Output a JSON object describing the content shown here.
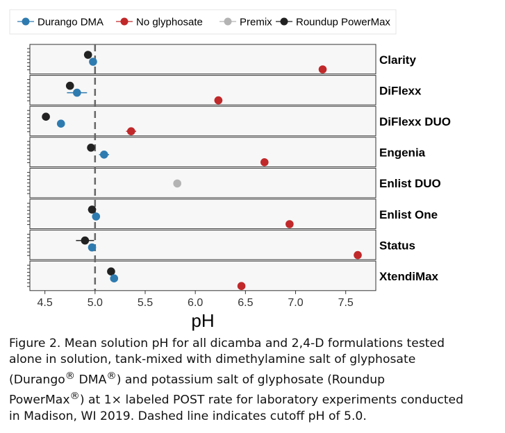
{
  "chart_data": {
    "type": "scatter",
    "xlabel": "pH",
    "ylabel": "",
    "xlim": [
      4.35,
      7.8
    ],
    "x_ticks": [
      4.5,
      5.0,
      5.5,
      6.0,
      6.5,
      7.0,
      7.5
    ],
    "x_tick_labels": [
      "4.5",
      "5.0",
      "5.5",
      "6.0",
      "6.5",
      "7.0",
      "7.5"
    ],
    "legend_position": "top",
    "reference_line": {
      "x": 5.0,
      "style": "dashed"
    },
    "grid": false,
    "series": [
      {
        "name": "Durango DMA",
        "color": "#2e7bb0"
      },
      {
        "name": "No glyphosate",
        "color": "#c0282a"
      },
      {
        "name": "Premix",
        "color": "#b3b3b3"
      },
      {
        "name": "Roundup PowerMax",
        "color": "#222222"
      }
    ],
    "facets": [
      {
        "label": "Clarity",
        "points": [
          {
            "series": "Roundup PowerMax",
            "x": 4.93,
            "err": 0.04
          },
          {
            "series": "Durango DMA",
            "x": 4.98,
            "err": 0.03
          },
          {
            "series": "No glyphosate",
            "x": 7.27,
            "err": 0.0
          }
        ]
      },
      {
        "label": "DiFlexx",
        "points": [
          {
            "series": "Roundup PowerMax",
            "x": 4.75,
            "err": 0.04
          },
          {
            "series": "Durango DMA",
            "x": 4.82,
            "err": 0.1
          },
          {
            "series": "No glyphosate",
            "x": 6.23,
            "err": 0.04
          }
        ]
      },
      {
        "label": "DiFlexx DUO",
        "points": [
          {
            "series": "Roundup PowerMax",
            "x": 4.51,
            "err": 0.0
          },
          {
            "series": "Durango DMA",
            "x": 4.66,
            "err": 0.0
          },
          {
            "series": "No glyphosate",
            "x": 5.36,
            "err": 0.05
          }
        ]
      },
      {
        "label": "Engenia",
        "points": [
          {
            "series": "Roundup PowerMax",
            "x": 4.96,
            "err": 0.03
          },
          {
            "series": "Durango DMA",
            "x": 5.09,
            "err": 0.05
          },
          {
            "series": "No glyphosate",
            "x": 6.69,
            "err": 0.0
          }
        ]
      },
      {
        "label": "Enlist DUO",
        "points": [
          {
            "series": "Premix",
            "x": 5.82,
            "err": 0.0
          }
        ]
      },
      {
        "label": "Enlist One",
        "points": [
          {
            "series": "Roundup PowerMax",
            "x": 4.97,
            "err": 0.04
          },
          {
            "series": "Durango DMA",
            "x": 5.01,
            "err": 0.0
          },
          {
            "series": "No glyphosate",
            "x": 6.94,
            "err": 0.0
          }
        ]
      },
      {
        "label": "Status",
        "points": [
          {
            "series": "Roundup PowerMax",
            "x": 4.9,
            "err": 0.09
          },
          {
            "series": "Durango DMA",
            "x": 4.97,
            "err": 0.03
          },
          {
            "series": "No glyphosate",
            "x": 7.62,
            "err": 0.03
          }
        ]
      },
      {
        "label": "XtendiMax",
        "points": [
          {
            "series": "Roundup PowerMax",
            "x": 5.16,
            "err": 0.0
          },
          {
            "series": "Durango DMA",
            "x": 5.19,
            "err": 0.0
          },
          {
            "series": "No glyphosate",
            "x": 6.46,
            "err": 0.0
          }
        ]
      }
    ]
  },
  "caption": {
    "before_1": "Figure 2. Mean solution pH for all dicamba and 2,4-D formulations tested\nalone in solution, tank-mixed with dimethylamine salt of glyphosate\n(Durango",
    "between": " DMA",
    "before_2": ") and potassium salt of glyphosate (Roundup\nPowerMax",
    "after": ") at 1× labeled POST rate for laboratory experiments conducted\nin Madison, WI 2019. Dashed line indicates cutoff pH of 5.0.",
    "registered_mark": "®"
  }
}
